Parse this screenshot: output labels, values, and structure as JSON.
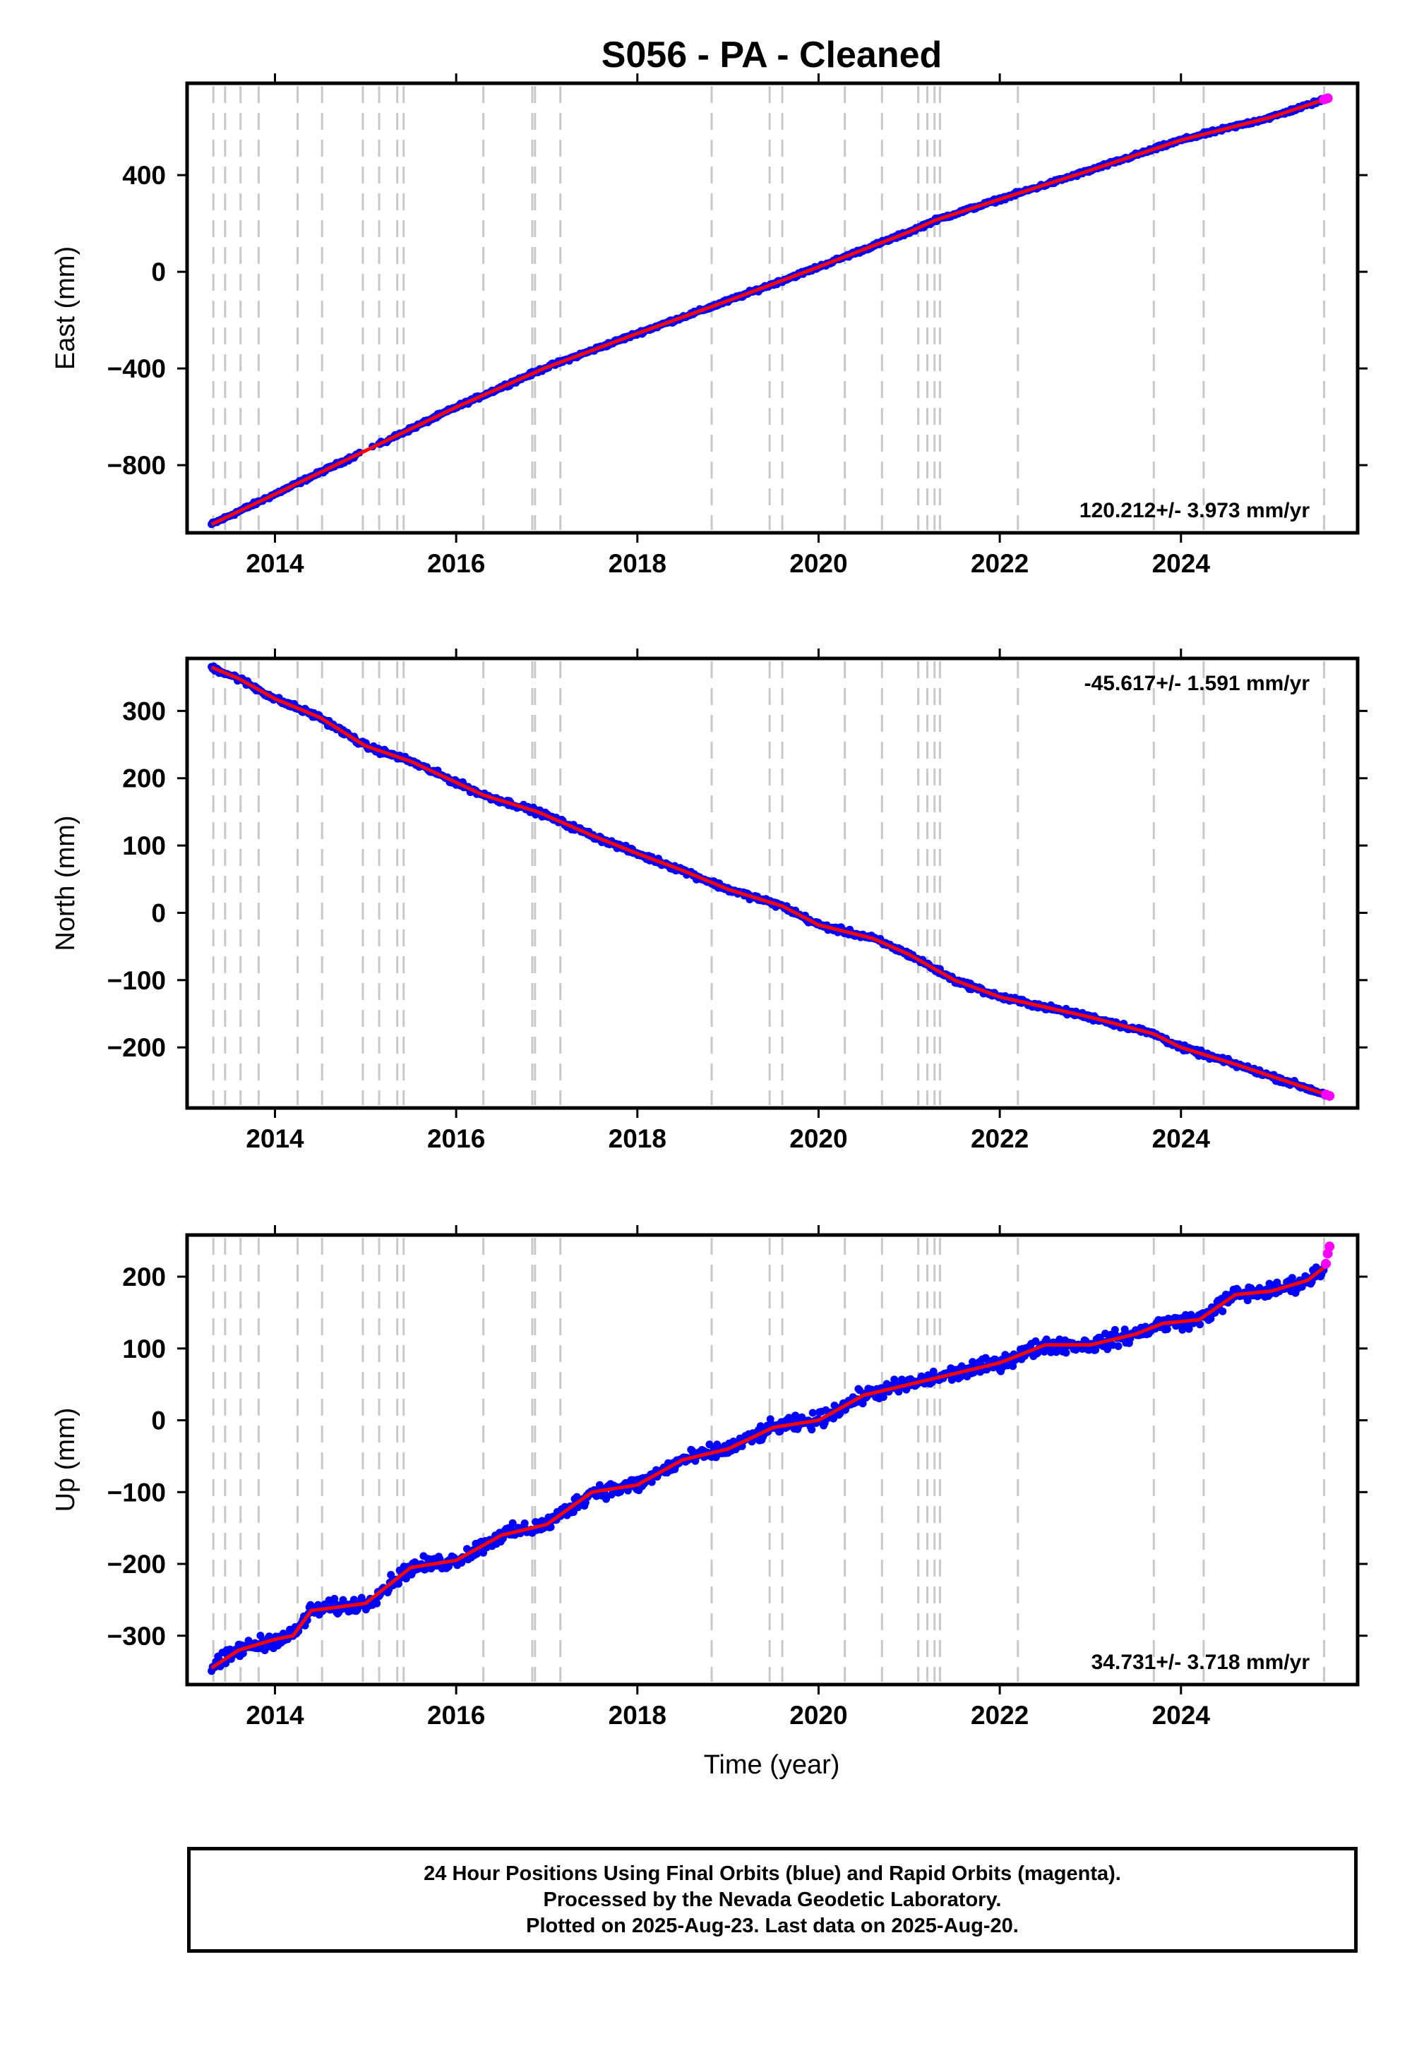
{
  "title": "S056  - PA - Cleaned",
  "xlabel": "Time (year)",
  "colors": {
    "final_orbits": "#0000ff",
    "rapid_orbits": "#ff00ff",
    "fit": "#ff0000",
    "event_lines": "#c8c8c8"
  },
  "footer": {
    "line1": "24 Hour Positions Using Final Orbits (blue) and Rapid Orbits (magenta).",
    "line2": "Processed by the Nevada Geodetic Laboratory.",
    "line3": "Plotted on 2025-Aug-23. Last data on 2025-Aug-20."
  },
  "chart_data": [
    {
      "type": "scatter",
      "ylabel": "East (mm)",
      "rate_label": "120.212+/- 3.973 mm/yr",
      "rate_position": "bottom-right",
      "xlim": [
        2013.03,
        2025.95
      ],
      "ylim": [
        -1080,
        780
      ],
      "xticks": [
        2014,
        2016,
        2018,
        2020,
        2022,
        2024
      ],
      "yticks": [
        -800,
        -400,
        0,
        400
      ],
      "event_lines": [
        2013.32,
        2013.45,
        2013.62,
        2013.82,
        2014.25,
        2014.52,
        2014.97,
        2015.15,
        2015.35,
        2015.42,
        2016.3,
        2016.84,
        2016.87,
        2017.15,
        2018.82,
        2019.46,
        2019.6,
        2020.29,
        2020.7,
        2021.1,
        2021.2,
        2021.28,
        2021.34,
        2022.2,
        2023.7,
        2024.25,
        2025.58
      ],
      "fit": [
        [
          2013.3,
          -1045
        ],
        [
          2014.0,
          -920
        ],
        [
          2015.0,
          -740
        ],
        [
          2016.0,
          -560
        ],
        [
          2017.0,
          -395
        ],
        [
          2018.0,
          -255
        ],
        [
          2019.0,
          -120
        ],
        [
          2020.0,
          20
        ],
        [
          2021.0,
          165
        ],
        [
          2021.3,
          215
        ],
        [
          2022.0,
          300
        ],
        [
          2023.0,
          420
        ],
        [
          2024.0,
          545
        ],
        [
          2025.0,
          640
        ],
        [
          2025.6,
          715
        ]
      ],
      "rapid_points": [
        [
          2025.58,
          713
        ],
        [
          2025.62,
          718
        ]
      ]
    },
    {
      "type": "scatter",
      "ylabel": "North (mm)",
      "rate_label": "-45.617+/- 1.591 mm/yr",
      "rate_position": "top-right",
      "xlim": [
        2013.03,
        2025.95
      ],
      "ylim": [
        -290,
        378
      ],
      "xticks": [
        2014,
        2016,
        2018,
        2020,
        2022,
        2024
      ],
      "yticks": [
        -200,
        -100,
        0,
        100,
        200,
        300
      ],
      "event_lines": [
        2013.32,
        2013.45,
        2013.62,
        2013.82,
        2014.25,
        2014.52,
        2014.97,
        2015.15,
        2015.35,
        2015.42,
        2016.3,
        2016.84,
        2016.87,
        2017.15,
        2018.82,
        2019.46,
        2019.6,
        2020.29,
        2020.7,
        2021.1,
        2021.2,
        2021.28,
        2021.34,
        2022.2,
        2023.7,
        2024.25,
        2025.58
      ],
      "fit": [
        [
          2013.3,
          365
        ],
        [
          2013.6,
          348
        ],
        [
          2014.0,
          318
        ],
        [
          2014.5,
          290
        ],
        [
          2015.0,
          248
        ],
        [
          2015.5,
          225
        ],
        [
          2016.3,
          175
        ],
        [
          2016.9,
          150
        ],
        [
          2017.5,
          115
        ],
        [
          2018.0,
          88
        ],
        [
          2018.5,
          63
        ],
        [
          2019.0,
          35
        ],
        [
          2019.6,
          10
        ],
        [
          2020.0,
          -18
        ],
        [
          2020.6,
          -38
        ],
        [
          2021.0,
          -62
        ],
        [
          2021.5,
          -100
        ],
        [
          2022.0,
          -125
        ],
        [
          2022.5,
          -140
        ],
        [
          2023.0,
          -155
        ],
        [
          2023.7,
          -180
        ],
        [
          2024.0,
          -200
        ],
        [
          2024.6,
          -225
        ],
        [
          2025.6,
          -270
        ]
      ],
      "rapid_points": [
        [
          2025.6,
          -270
        ],
        [
          2025.64,
          -272
        ]
      ]
    },
    {
      "type": "scatter",
      "ylabel": "Up (mm)",
      "rate_label": "34.731+/- 3.718 mm/yr",
      "rate_position": "bottom-right",
      "xlim": [
        2013.03,
        2025.95
      ],
      "ylim": [
        -368,
        258
      ],
      "xticks": [
        2014,
        2016,
        2018,
        2020,
        2022,
        2024
      ],
      "yticks": [
        -300,
        -200,
        -100,
        0,
        100,
        200
      ],
      "event_lines": [
        2013.32,
        2013.45,
        2013.62,
        2013.82,
        2014.25,
        2014.52,
        2014.97,
        2015.15,
        2015.35,
        2015.42,
        2016.3,
        2016.84,
        2016.87,
        2017.15,
        2018.82,
        2019.46,
        2019.6,
        2020.29,
        2020.7,
        2021.1,
        2021.2,
        2021.28,
        2021.34,
        2022.2,
        2023.7,
        2024.25,
        2025.58
      ],
      "fit": [
        [
          2013.3,
          -345
        ],
        [
          2013.6,
          -320
        ],
        [
          2014.0,
          -305
        ],
        [
          2014.2,
          -300
        ],
        [
          2014.4,
          -265
        ],
        [
          2015.0,
          -255
        ],
        [
          2015.5,
          -205
        ],
        [
          2016.0,
          -195
        ],
        [
          2016.5,
          -160
        ],
        [
          2017.0,
          -145
        ],
        [
          2017.5,
          -100
        ],
        [
          2018.0,
          -90
        ],
        [
          2018.5,
          -55
        ],
        [
          2019.0,
          -40
        ],
        [
          2019.5,
          -10
        ],
        [
          2020.0,
          0
        ],
        [
          2020.5,
          35
        ],
        [
          2021.0,
          50
        ],
        [
          2021.5,
          65
        ],
        [
          2022.0,
          80
        ],
        [
          2022.5,
          105
        ],
        [
          2023.0,
          105
        ],
        [
          2023.5,
          120
        ],
        [
          2023.8,
          135
        ],
        [
          2024.2,
          140
        ],
        [
          2024.6,
          175
        ],
        [
          2025.0,
          180
        ],
        [
          2025.4,
          195
        ],
        [
          2025.6,
          215
        ]
      ],
      "rapid_points": [
        [
          2025.6,
          218
        ],
        [
          2025.62,
          232
        ],
        [
          2025.64,
          242
        ]
      ]
    }
  ]
}
